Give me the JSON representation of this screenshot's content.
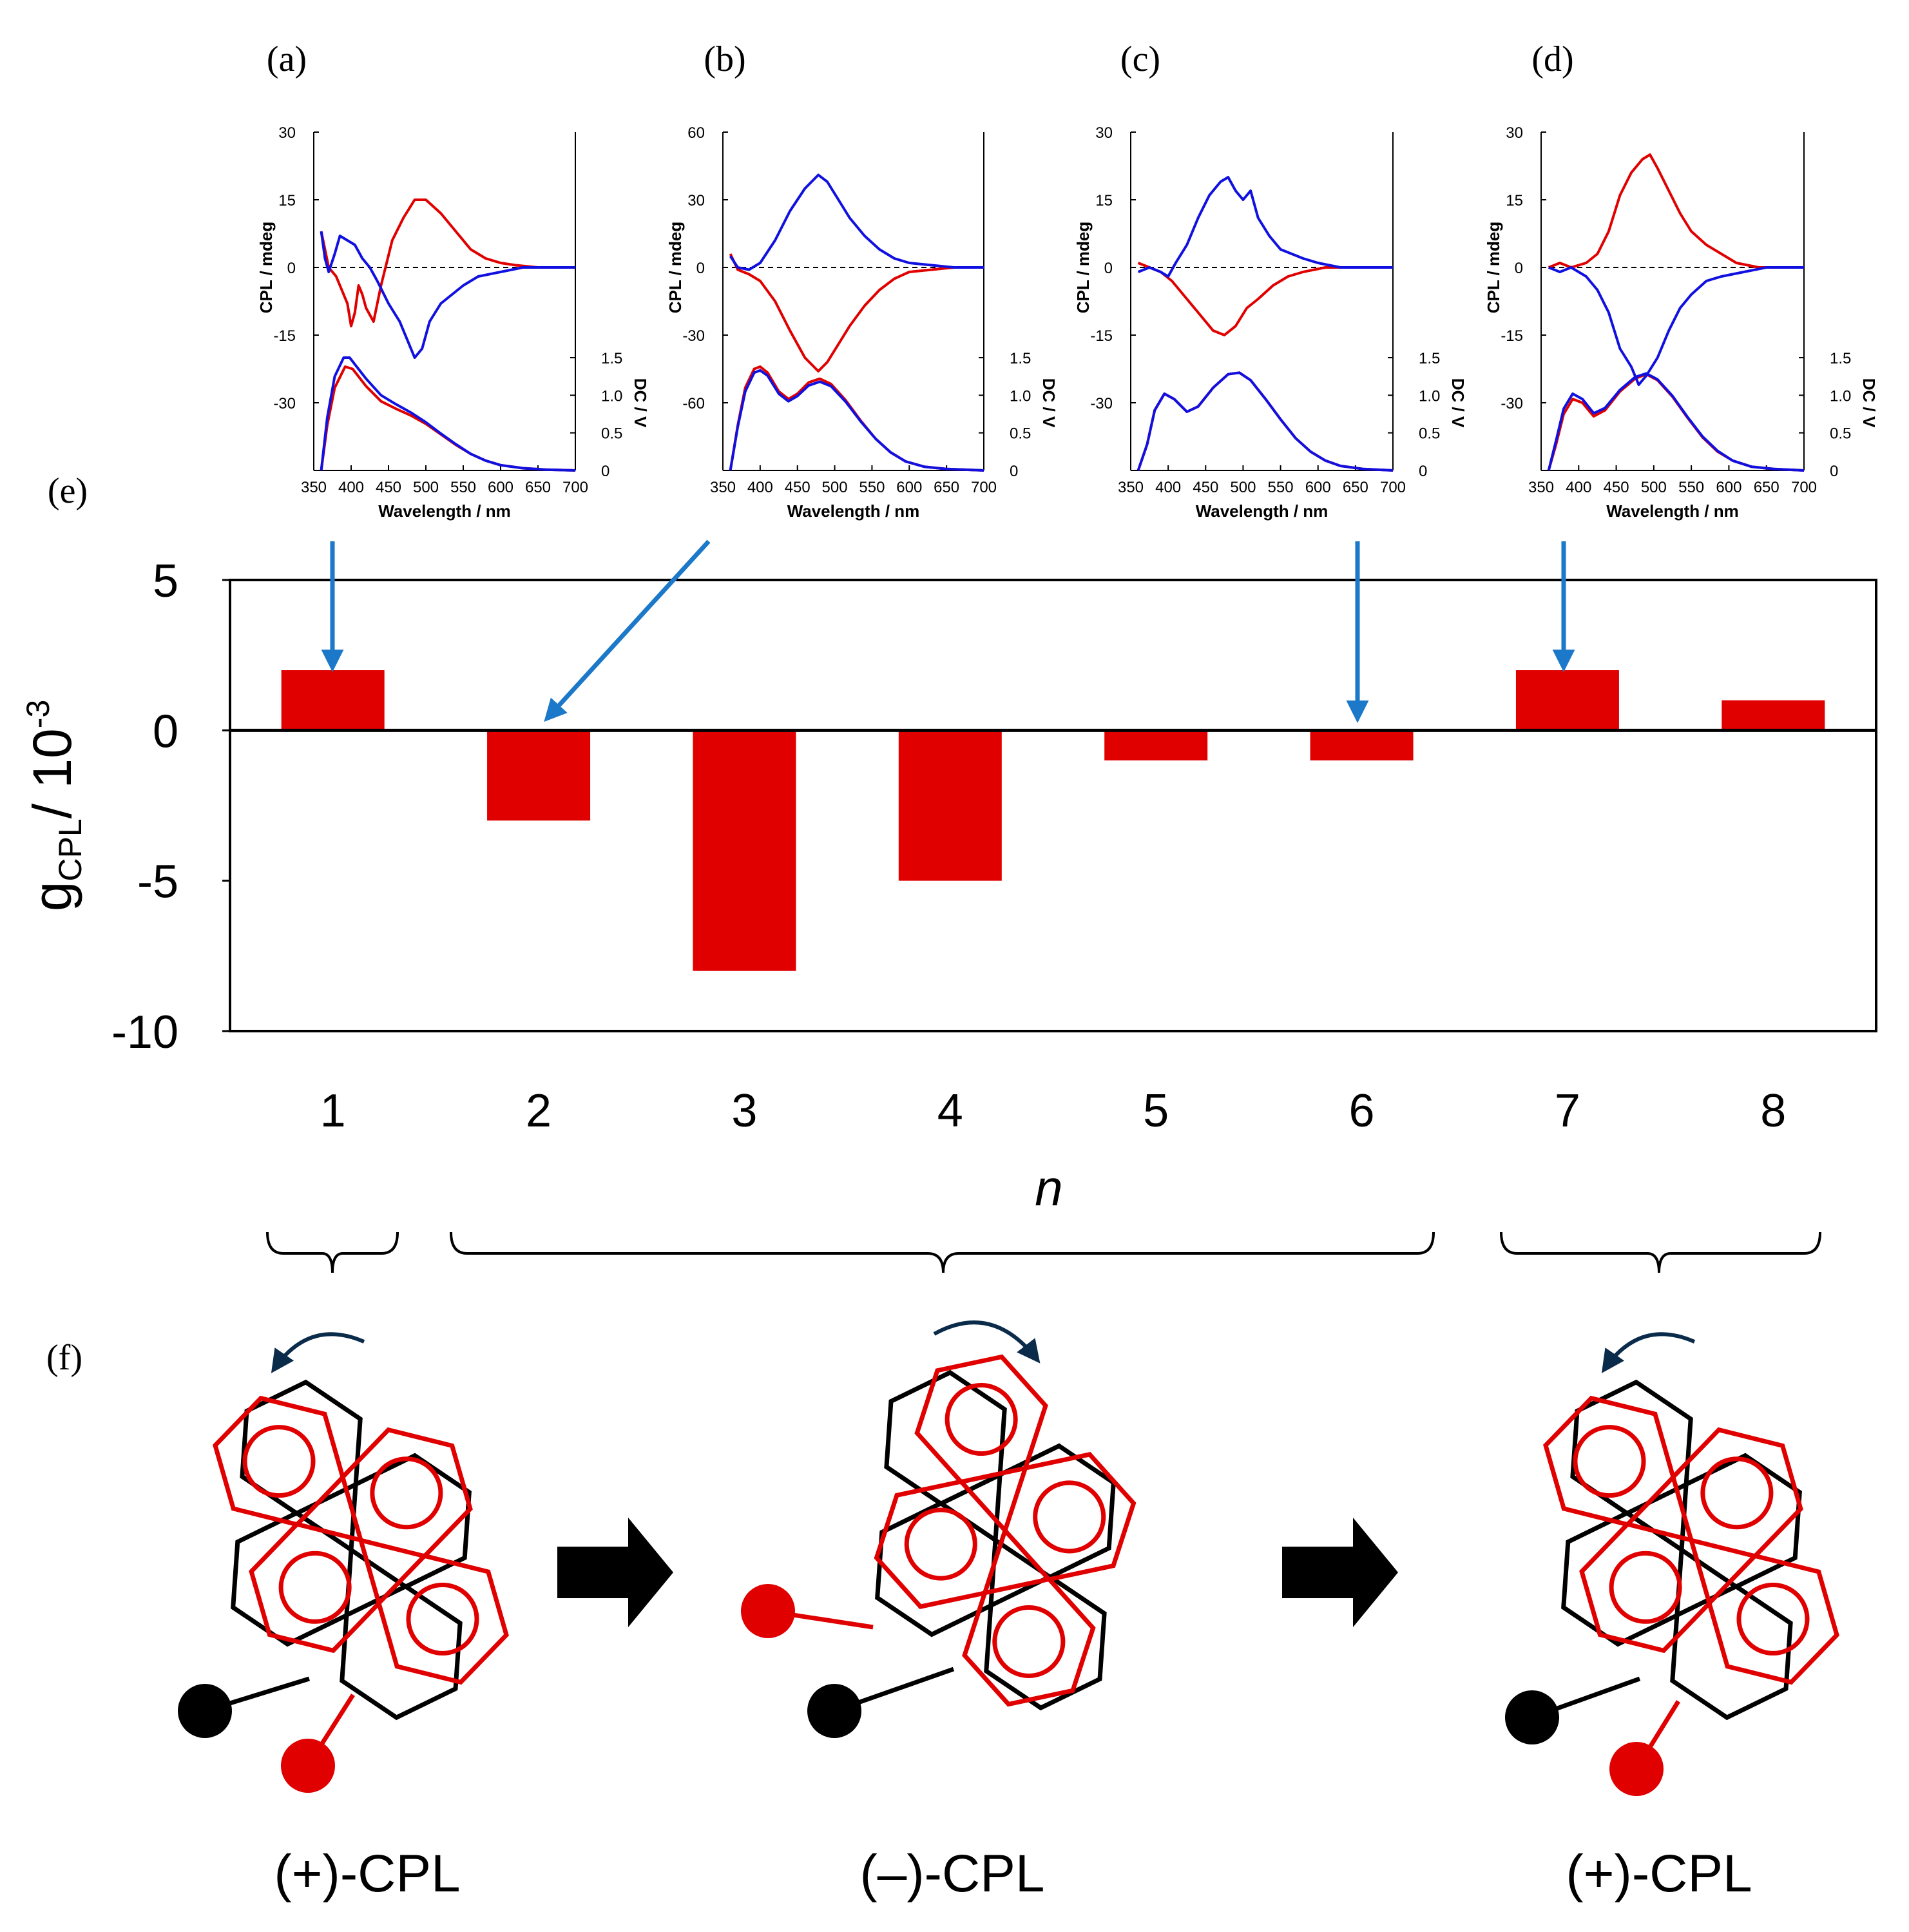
{
  "colors": {
    "red": "#e00000",
    "blue": "#1010e0",
    "arrow": "#1c78c8",
    "navy": "#0b2b4a",
    "black": "#000000",
    "gray": "#b8b8b8"
  },
  "panels": {
    "a": "(a)",
    "b": "(b)",
    "c": "(c)",
    "d": "(d)",
    "e": "(e)",
    "f": "(f)"
  },
  "insets": [
    {
      "label": "(a)",
      "cpl_ticks": [
        "30",
        "15",
        "0",
        "-15",
        "-30"
      ],
      "cpl_range": [
        -45,
        30
      ],
      "dc_ticks": [
        "1.5",
        "1.0",
        "0.5",
        "0"
      ],
      "x_ticks": [
        "350",
        "400",
        "450",
        "500",
        "550",
        "600",
        "650",
        "700"
      ],
      "xlabel": "Wavelength / nm",
      "ylabel_left": "CPL / mdeg",
      "ylabel_right": "DC / V",
      "red_cpl": [
        [
          360,
          8
        ],
        [
          370,
          0
        ],
        [
          380,
          -2
        ],
        [
          395,
          -8
        ],
        [
          400,
          -13
        ],
        [
          405,
          -10
        ],
        [
          410,
          -4
        ],
        [
          415,
          -6
        ],
        [
          420,
          -9
        ],
        [
          430,
          -12
        ],
        [
          440,
          -4
        ],
        [
          455,
          6
        ],
        [
          470,
          11
        ],
        [
          485,
          15
        ],
        [
          500,
          15
        ],
        [
          520,
          12
        ],
        [
          540,
          8
        ],
        [
          560,
          4
        ],
        [
          580,
          2
        ],
        [
          600,
          1
        ],
        [
          620,
          0.5
        ],
        [
          650,
          0
        ],
        [
          700,
          0
        ]
      ],
      "blue_cpl": [
        [
          360,
          8
        ],
        [
          365,
          2
        ],
        [
          370,
          -1
        ],
        [
          378,
          3
        ],
        [
          385,
          7
        ],
        [
          395,
          6
        ],
        [
          405,
          5
        ],
        [
          415,
          2
        ],
        [
          425,
          0
        ],
        [
          435,
          -3
        ],
        [
          450,
          -8
        ],
        [
          465,
          -12
        ],
        [
          475,
          -16
        ],
        [
          485,
          -20
        ],
        [
          495,
          -18
        ],
        [
          505,
          -12
        ],
        [
          520,
          -8
        ],
        [
          535,
          -6
        ],
        [
          550,
          -4
        ],
        [
          570,
          -2
        ],
        [
          600,
          -1
        ],
        [
          630,
          0
        ],
        [
          700,
          0
        ]
      ],
      "red_dc": [
        [
          360,
          0
        ],
        [
          368,
          0.6
        ],
        [
          378,
          1.1
        ],
        [
          392,
          1.38
        ],
        [
          402,
          1.35
        ],
        [
          420,
          1.12
        ],
        [
          440,
          0.92
        ],
        [
          460,
          0.82
        ],
        [
          480,
          0.73
        ],
        [
          500,
          0.62
        ],
        [
          520,
          0.48
        ],
        [
          540,
          0.34
        ],
        [
          560,
          0.22
        ],
        [
          580,
          0.13
        ],
        [
          600,
          0.07
        ],
        [
          630,
          0.03
        ],
        [
          660,
          0.01
        ],
        [
          700,
          0
        ]
      ],
      "blue_dc": [
        [
          360,
          0
        ],
        [
          368,
          0.7
        ],
        [
          378,
          1.25
        ],
        [
          390,
          1.5
        ],
        [
          398,
          1.5
        ],
        [
          420,
          1.22
        ],
        [
          440,
          1.0
        ],
        [
          460,
          0.88
        ],
        [
          480,
          0.77
        ],
        [
          500,
          0.64
        ],
        [
          520,
          0.49
        ],
        [
          540,
          0.35
        ],
        [
          560,
          0.22
        ],
        [
          580,
          0.13
        ],
        [
          600,
          0.07
        ],
        [
          630,
          0.03
        ],
        [
          660,
          0.01
        ],
        [
          700,
          0
        ]
      ]
    },
    {
      "label": "(b)",
      "cpl_ticks": [
        "60",
        "30",
        "0",
        "-30",
        "-60"
      ],
      "cpl_range": [
        -90,
        60
      ],
      "dc_ticks": [
        "1.5",
        "1.0",
        "0.5",
        "0"
      ],
      "x_ticks": [
        "350",
        "400",
        "450",
        "500",
        "550",
        "600",
        "650",
        "700"
      ],
      "xlabel": "Wavelength / nm",
      "ylabel_left": "CPL / mdeg",
      "ylabel_right": "DC / V",
      "red_cpl": [
        [
          360,
          6
        ],
        [
          370,
          -1
        ],
        [
          385,
          -3
        ],
        [
          400,
          -6
        ],
        [
          420,
          -15
        ],
        [
          440,
          -28
        ],
        [
          460,
          -40
        ],
        [
          478,
          -46
        ],
        [
          490,
          -42
        ],
        [
          505,
          -34
        ],
        [
          520,
          -26
        ],
        [
          540,
          -17
        ],
        [
          560,
          -10
        ],
        [
          580,
          -5
        ],
        [
          600,
          -2
        ],
        [
          630,
          -1
        ],
        [
          660,
          0
        ],
        [
          700,
          0
        ]
      ],
      "blue_cpl": [
        [
          360,
          5
        ],
        [
          370,
          0
        ],
        [
          385,
          -1
        ],
        [
          400,
          2
        ],
        [
          420,
          12
        ],
        [
          440,
          25
        ],
        [
          460,
          35
        ],
        [
          478,
          41
        ],
        [
          490,
          38
        ],
        [
          505,
          30
        ],
        [
          520,
          22
        ],
        [
          540,
          14
        ],
        [
          560,
          8
        ],
        [
          580,
          4
        ],
        [
          600,
          2
        ],
        [
          630,
          1
        ],
        [
          660,
          0
        ],
        [
          700,
          0
        ]
      ],
      "red_dc": [
        [
          360,
          0
        ],
        [
          370,
          0.6
        ],
        [
          380,
          1.1
        ],
        [
          392,
          1.35
        ],
        [
          400,
          1.38
        ],
        [
          410,
          1.3
        ],
        [
          425,
          1.05
        ],
        [
          438,
          0.95
        ],
        [
          450,
          1.02
        ],
        [
          465,
          1.17
        ],
        [
          480,
          1.22
        ],
        [
          495,
          1.15
        ],
        [
          515,
          0.93
        ],
        [
          535,
          0.66
        ],
        [
          555,
          0.42
        ],
        [
          575,
          0.24
        ],
        [
          595,
          0.12
        ],
        [
          620,
          0.05
        ],
        [
          650,
          0.02
        ],
        [
          700,
          0
        ]
      ],
      "blue_dc": [
        [
          360,
          0
        ],
        [
          370,
          0.58
        ],
        [
          380,
          1.05
        ],
        [
          392,
          1.3
        ],
        [
          400,
          1.33
        ],
        [
          410,
          1.26
        ],
        [
          425,
          1.02
        ],
        [
          438,
          0.92
        ],
        [
          450,
          0.99
        ],
        [
          465,
          1.13
        ],
        [
          480,
          1.18
        ],
        [
          495,
          1.12
        ],
        [
          515,
          0.91
        ],
        [
          535,
          0.65
        ],
        [
          555,
          0.42
        ],
        [
          575,
          0.24
        ],
        [
          595,
          0.12
        ],
        [
          620,
          0.05
        ],
        [
          650,
          0.02
        ],
        [
          700,
          0
        ]
      ]
    },
    {
      "label": "(c)",
      "cpl_ticks": [
        "30",
        "15",
        "0",
        "-15",
        "-30"
      ],
      "cpl_range": [
        -45,
        30
      ],
      "dc_ticks": [
        "1.5",
        "1.0",
        "0.5",
        "0"
      ],
      "x_ticks": [
        "350",
        "400",
        "450",
        "500",
        "550",
        "600",
        "650",
        "700"
      ],
      "xlabel": "Wavelength / nm",
      "ylabel_left": "CPL / mdeg",
      "ylabel_right": "DC / V",
      "red_cpl": [
        [
          360,
          1
        ],
        [
          375,
          0
        ],
        [
          390,
          -1
        ],
        [
          405,
          -3
        ],
        [
          420,
          -6
        ],
        [
          440,
          -10
        ],
        [
          460,
          -14
        ],
        [
          475,
          -15
        ],
        [
          490,
          -13
        ],
        [
          505,
          -9
        ],
        [
          520,
          -7
        ],
        [
          540,
          -4
        ],
        [
          560,
          -2
        ],
        [
          580,
          -1
        ],
        [
          610,
          0
        ],
        [
          640,
          0
        ],
        [
          700,
          0
        ]
      ],
      "blue_cpl": [
        [
          360,
          -1
        ],
        [
          375,
          0
        ],
        [
          390,
          -1
        ],
        [
          400,
          -2
        ],
        [
          410,
          1
        ],
        [
          425,
          5
        ],
        [
          440,
          11
        ],
        [
          455,
          16
        ],
        [
          470,
          19
        ],
        [
          480,
          20
        ],
        [
          490,
          17
        ],
        [
          500,
          15
        ],
        [
          510,
          17
        ],
        [
          520,
          11
        ],
        [
          535,
          7
        ],
        [
          550,
          4
        ],
        [
          565,
          3
        ],
        [
          580,
          2
        ],
        [
          600,
          1
        ],
        [
          630,
          0
        ],
        [
          700,
          0
        ]
      ],
      "red_dc": [
        [
          360,
          0
        ],
        [
          372,
          0.35
        ],
        [
          382,
          0.8
        ],
        [
          395,
          1.02
        ],
        [
          408,
          0.95
        ],
        [
          425,
          0.78
        ],
        [
          440,
          0.85
        ],
        [
          460,
          1.1
        ],
        [
          480,
          1.28
        ],
        [
          495,
          1.3
        ],
        [
          510,
          1.2
        ],
        [
          530,
          0.95
        ],
        [
          550,
          0.68
        ],
        [
          570,
          0.43
        ],
        [
          590,
          0.25
        ],
        [
          610,
          0.13
        ],
        [
          630,
          0.06
        ],
        [
          660,
          0.02
        ],
        [
          700,
          0
        ]
      ],
      "blue_dc": [
        [
          360,
          0
        ],
        [
          372,
          0.35
        ],
        [
          382,
          0.8
        ],
        [
          395,
          1.02
        ],
        [
          408,
          0.95
        ],
        [
          425,
          0.78
        ],
        [
          440,
          0.85
        ],
        [
          460,
          1.1
        ],
        [
          480,
          1.28
        ],
        [
          495,
          1.3
        ],
        [
          510,
          1.2
        ],
        [
          530,
          0.95
        ],
        [
          550,
          0.68
        ],
        [
          570,
          0.43
        ],
        [
          590,
          0.25
        ],
        [
          610,
          0.13
        ],
        [
          630,
          0.06
        ],
        [
          660,
          0.02
        ],
        [
          700,
          0
        ]
      ]
    },
    {
      "label": "(d)",
      "cpl_ticks": [
        "30",
        "15",
        "0",
        "-15",
        "-30"
      ],
      "cpl_range": [
        -45,
        30
      ],
      "dc_ticks": [
        "1.5",
        "1.0",
        "0.5",
        "0"
      ],
      "x_ticks": [
        "350",
        "400",
        "450",
        "500",
        "550",
        "600",
        "650",
        "700"
      ],
      "xlabel": "Wavelength / nm",
      "ylabel_left": "CPL / mdeg",
      "ylabel_right": "DC / V",
      "red_cpl": [
        [
          360,
          0
        ],
        [
          375,
          1
        ],
        [
          390,
          0
        ],
        [
          410,
          1
        ],
        [
          425,
          3
        ],
        [
          440,
          8
        ],
        [
          455,
          16
        ],
        [
          470,
          21
        ],
        [
          485,
          24
        ],
        [
          495,
          25
        ],
        [
          505,
          22
        ],
        [
          520,
          17
        ],
        [
          535,
          12
        ],
        [
          550,
          8
        ],
        [
          570,
          5
        ],
        [
          590,
          3
        ],
        [
          610,
          1
        ],
        [
          640,
          0
        ],
        [
          700,
          0
        ]
      ],
      "blue_cpl": [
        [
          360,
          0
        ],
        [
          375,
          -1
        ],
        [
          390,
          0
        ],
        [
          410,
          -2
        ],
        [
          425,
          -5
        ],
        [
          440,
          -10
        ],
        [
          455,
          -18
        ],
        [
          470,
          -22
        ],
        [
          480,
          -26
        ],
        [
          490,
          -24
        ],
        [
          505,
          -20
        ],
        [
          520,
          -14
        ],
        [
          535,
          -9
        ],
        [
          550,
          -6
        ],
        [
          570,
          -3
        ],
        [
          590,
          -2
        ],
        [
          620,
          -1
        ],
        [
          650,
          0
        ],
        [
          700,
          0
        ]
      ],
      "red_dc": [
        [
          360,
          0
        ],
        [
          370,
          0.35
        ],
        [
          380,
          0.75
        ],
        [
          392,
          0.95
        ],
        [
          405,
          0.9
        ],
        [
          420,
          0.72
        ],
        [
          435,
          0.8
        ],
        [
          455,
          1.05
        ],
        [
          475,
          1.22
        ],
        [
          490,
          1.28
        ],
        [
          505,
          1.2
        ],
        [
          525,
          0.98
        ],
        [
          545,
          0.7
        ],
        [
          565,
          0.44
        ],
        [
          585,
          0.25
        ],
        [
          605,
          0.13
        ],
        [
          630,
          0.05
        ],
        [
          660,
          0.02
        ],
        [
          700,
          0
        ]
      ],
      "blue_dc": [
        [
          360,
          0
        ],
        [
          370,
          0.4
        ],
        [
          380,
          0.82
        ],
        [
          392,
          1.02
        ],
        [
          405,
          0.95
        ],
        [
          420,
          0.76
        ],
        [
          435,
          0.83
        ],
        [
          455,
          1.07
        ],
        [
          475,
          1.24
        ],
        [
          490,
          1.29
        ],
        [
          505,
          1.21
        ],
        [
          525,
          0.99
        ],
        [
          545,
          0.71
        ],
        [
          565,
          0.45
        ],
        [
          585,
          0.26
        ],
        [
          605,
          0.13
        ],
        [
          630,
          0.05
        ],
        [
          660,
          0.02
        ],
        [
          700,
          0
        ]
      ]
    }
  ],
  "chart_data": {
    "type": "bar",
    "categories": [
      "1",
      "2",
      "3",
      "4",
      "5",
      "6",
      "7",
      "8"
    ],
    "values": [
      2,
      -3,
      -8,
      -5,
      -1,
      -1,
      2,
      1
    ],
    "ylim": [
      -10,
      5
    ],
    "y_ticks": [
      "5",
      "0",
      "-5",
      "-10"
    ],
    "ylabel_main": "g",
    "ylabel_sub": "CPL",
    "ylabel_rest": "/ 10",
    "ylabel_sup": "-3",
    "xlabel": "n",
    "bar_color": "#e00000"
  },
  "schemes": [
    {
      "label": "(+)-CPL"
    },
    {
      "label": "(–)-CPL"
    },
    {
      "label": "(+)-CPL"
    }
  ]
}
